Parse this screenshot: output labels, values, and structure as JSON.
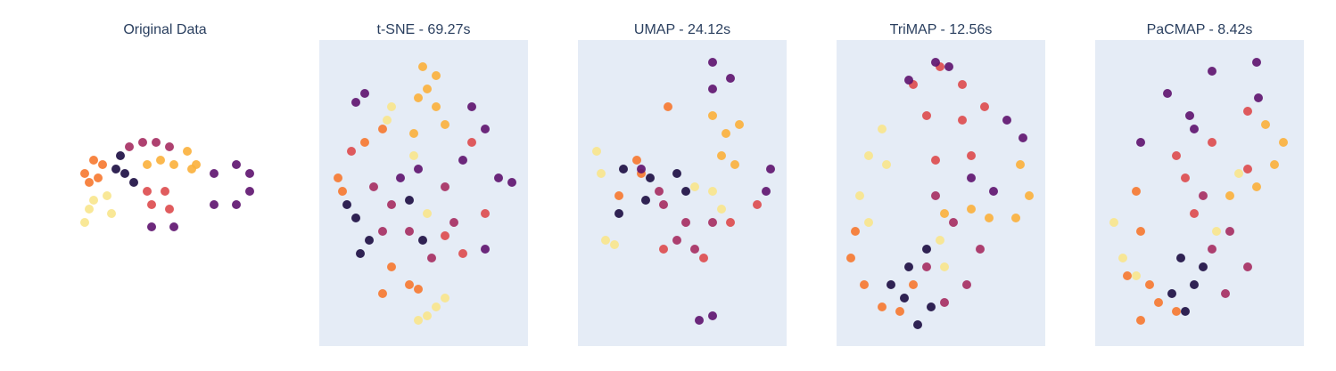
{
  "chart_data": [
    {
      "type": "scatter",
      "title": "Original Data",
      "xlim": [
        0,
        234
      ],
      "ylim": [
        0,
        344
      ],
      "series": [
        {
          "color": "#f8e58c",
          "x": [
            27,
            32,
            37,
            52,
            57
          ],
          "values": [
            139,
            154,
            164,
            169,
            149
          ]
        },
        {
          "color": "#f6782f",
          "x": [
            27,
            37,
            47,
            32,
            42
          ],
          "values": [
            194,
            209,
            204,
            184,
            189
          ]
        },
        {
          "color": "#1b0c41",
          "x": [
            67,
            72,
            82,
            62
          ],
          "values": [
            214,
            194,
            184,
            199
          ]
        },
        {
          "color": "#a52c60",
          "x": [
            77,
            92,
            107,
            122
          ],
          "values": [
            224,
            229,
            229,
            224
          ]
        },
        {
          "color": "#fbb03b",
          "x": [
            97,
            112,
            127,
            142,
            152,
            147
          ],
          "values": [
            204,
            209,
            204,
            219,
            204,
            199
          ]
        },
        {
          "color": "#dd4a4c",
          "x": [
            97,
            117,
            122,
            102
          ],
          "values": [
            174,
            174,
            154,
            159
          ]
        },
        {
          "color": "#5d126e",
          "x": [
            102,
            127,
            172,
            197,
            212,
            212,
            197,
            172
          ],
          "values": [
            134,
            134,
            194,
            204,
            194,
            174,
            159,
            159
          ]
        }
      ]
    },
    {
      "type": "scatter",
      "title": "t-SNE - 69.27s",
      "xlim": [
        0,
        234
      ],
      "ylim": [
        0,
        344
      ],
      "background": "#e5ecf6",
      "series": [
        {
          "color": "#f8e58c",
          "x": [
            81,
            76,
            111,
            131,
            141,
            121,
            106,
            121
          ],
          "values": [
            269,
            254,
            29,
            44,
            54,
            34,
            214,
            149
          ]
        },
        {
          "color": "#fbb03b",
          "x": [
            116,
            131,
            111,
            131,
            141,
            106,
            121
          ],
          "values": [
            314,
            304,
            279,
            269,
            249,
            239,
            289
          ]
        },
        {
          "color": "#f6782f",
          "x": [
            21,
            26,
            51,
            71,
            81,
            101,
            71,
            111
          ],
          "values": [
            189,
            174,
            229,
            244,
            89,
            69,
            59,
            64
          ]
        },
        {
          "color": "#dd4a4c",
          "x": [
            171,
            186,
            141,
            161,
            36
          ],
          "values": [
            229,
            149,
            124,
            104,
            219
          ]
        },
        {
          "color": "#a52c60",
          "x": [
            61,
            81,
            101,
            141,
            151,
            126,
            71
          ],
          "values": [
            179,
            159,
            129,
            179,
            139,
            99,
            129
          ]
        },
        {
          "color": "#5d126e",
          "x": [
            41,
            51,
            171,
            186,
            161,
            201,
            216,
            186,
            111,
            91
          ],
          "values": [
            274,
            284,
            269,
            244,
            209,
            189,
            184,
            109,
            199,
            189
          ]
        },
        {
          "color": "#1b0c41",
          "x": [
            31,
            41,
            56,
            46,
            101,
            116
          ],
          "values": [
            159,
            144,
            119,
            104,
            164,
            119
          ]
        }
      ]
    },
    {
      "type": "scatter",
      "title": "UMAP - 24.12s",
      "xlim": [
        0,
        234
      ],
      "ylim": [
        0,
        344
      ],
      "background": "#e5ecf6",
      "series": [
        {
          "color": "#f8e58c",
          "x": [
            21,
            26,
            31,
            41,
            151,
            161,
            131
          ],
          "values": [
            219,
            194,
            119,
            114,
            174,
            154,
            179
          ]
        },
        {
          "color": "#fbb03b",
          "x": [
            151,
            166,
            181,
            161,
            176
          ],
          "values": [
            259,
            239,
            249,
            214,
            204
          ]
        },
        {
          "color": "#f6782f",
          "x": [
            66,
            71,
            46,
            101
          ],
          "values": [
            209,
            194,
            169,
            269
          ]
        },
        {
          "color": "#dd4a4c",
          "x": [
            201,
            171,
            96,
            141
          ],
          "values": [
            159,
            139,
            109,
            99
          ]
        },
        {
          "color": "#a52c60",
          "x": [
            96,
            121,
            151,
            111,
            131,
            91
          ],
          "values": [
            159,
            139,
            139,
            119,
            109,
            174
          ]
        },
        {
          "color": "#5d126e",
          "x": [
            151,
            151,
            171,
            216,
            211,
            151,
            136,
            71
          ],
          "values": [
            319,
            289,
            301,
            199,
            174,
            34,
            29,
            199
          ]
        },
        {
          "color": "#1b0c41",
          "x": [
            51,
            81,
            111,
            46,
            76,
            121
          ],
          "values": [
            199,
            189,
            194,
            149,
            164,
            174
          ]
        }
      ]
    },
    {
      "type": "scatter",
      "title": "TriMAP - 12.56s",
      "xlim": [
        0,
        234
      ],
      "ylim": [
        0,
        344
      ],
      "background": "#e5ecf6",
      "series": [
        {
          "color": "#f8e58c",
          "x": [
            51,
            36,
            26,
            36,
            56,
            116,
            121
          ],
          "values": [
            244,
            214,
            169,
            139,
            204,
            119,
            89
          ]
        },
        {
          "color": "#fbb03b",
          "x": [
            206,
            216,
            201,
            171,
            151,
            121
          ],
          "values": [
            204,
            169,
            144,
            144,
            154,
            149
          ]
        },
        {
          "color": "#f6782f",
          "x": [
            16,
            31,
            51,
            71,
            86,
            21
          ],
          "values": [
            99,
            69,
            44,
            39,
            69,
            129
          ]
        },
        {
          "color": "#dd4a4c",
          "x": [
            86,
            101,
            116,
            141,
            141,
            166,
            111,
            151
          ],
          "values": [
            294,
            259,
            314,
            294,
            254,
            269,
            209,
            214
          ]
        },
        {
          "color": "#a52c60",
          "x": [
            111,
            131,
            161,
            146,
            121,
            101
          ],
          "values": [
            169,
            139,
            109,
            69,
            49,
            89
          ]
        },
        {
          "color": "#5d126e",
          "x": [
            81,
            111,
            126,
            191,
            209,
            151,
            176
          ],
          "values": [
            299,
            319,
            314,
            254,
            234,
            189,
            174
          ]
        },
        {
          "color": "#1b0c41",
          "x": [
            61,
            76,
            91,
            101,
            81,
            106
          ],
          "values": [
            69,
            54,
            24,
            109,
            89,
            44
          ]
        }
      ]
    },
    {
      "type": "scatter",
      "title": "PaCMAP - 8.42s",
      "xlim": [
        0,
        234
      ],
      "ylim": [
        0,
        344
      ],
      "background": "#e5ecf6",
      "series": [
        {
          "color": "#f8e58c",
          "x": [
            21,
            31,
            46,
            161,
            136
          ],
          "values": [
            139,
            99,
            79,
            194,
            129
          ]
        },
        {
          "color": "#fbb03b",
          "x": [
            191,
            211,
            201,
            181,
            151
          ],
          "values": [
            249,
            229,
            204,
            179,
            169
          ]
        },
        {
          "color": "#f6782f",
          "x": [
            46,
            51,
            36,
            61,
            91,
            51,
            71
          ],
          "values": [
            174,
            129,
            79,
            69,
            39,
            29,
            49
          ]
        },
        {
          "color": "#dd4a4c",
          "x": [
            101,
            131,
            171,
            111,
            171,
            91
          ],
          "values": [
            189,
            229,
            199,
            149,
            264,
            214
          ]
        },
        {
          "color": "#a52c60",
          "x": [
            121,
            151,
            171,
            146,
            131
          ],
          "values": [
            169,
            129,
            89,
            59,
            109
          ]
        },
        {
          "color": "#5d126e",
          "x": [
            81,
            106,
            131,
            181,
            183,
            51,
            111
          ],
          "values": [
            284,
            259,
            309,
            319,
            279,
            229,
            244
          ]
        },
        {
          "color": "#1b0c41",
          "x": [
            96,
            111,
            101,
            86,
            121
          ],
          "values": [
            99,
            69,
            39,
            59,
            89
          ]
        }
      ]
    }
  ]
}
